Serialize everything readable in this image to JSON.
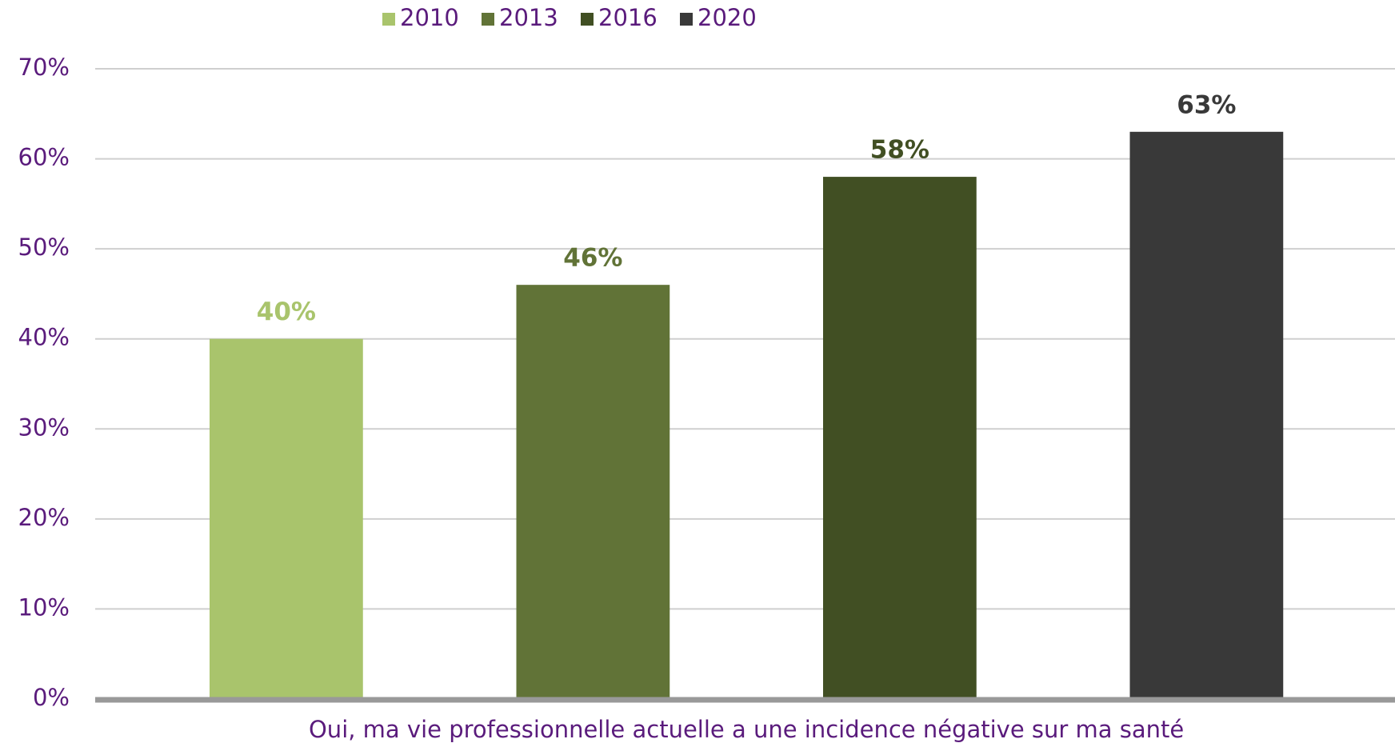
{
  "chart_data": {
    "type": "bar",
    "categories": [
      "Oui, ma vie professionnelle actuelle a une incidence négative sur ma santé"
    ],
    "series": [
      {
        "name": "2010",
        "color": "#a9c46c",
        "values": [
          40
        ],
        "value_labels": [
          "40%"
        ]
      },
      {
        "name": "2013",
        "color": "#617337",
        "values": [
          46
        ],
        "value_labels": [
          "46%"
        ]
      },
      {
        "name": "2016",
        "color": "#414f23",
        "values": [
          58
        ],
        "value_labels": [
          "58%"
        ]
      },
      {
        "name": "2020",
        "color": "#393939",
        "values": [
          63
        ],
        "value_labels": [
          "63%"
        ]
      }
    ],
    "ylim": [
      0,
      70
    ],
    "yticks": [
      {
        "value": 0,
        "label": "0%"
      },
      {
        "value": 10,
        "label": "10%"
      },
      {
        "value": 20,
        "label": "20%"
      },
      {
        "value": 30,
        "label": "30%"
      },
      {
        "value": 40,
        "label": "40%"
      },
      {
        "value": 50,
        "label": "50%"
      },
      {
        "value": 60,
        "label": "60%"
      },
      {
        "value": 70,
        "label": "70%"
      }
    ],
    "grid": true,
    "legend": "top"
  }
}
